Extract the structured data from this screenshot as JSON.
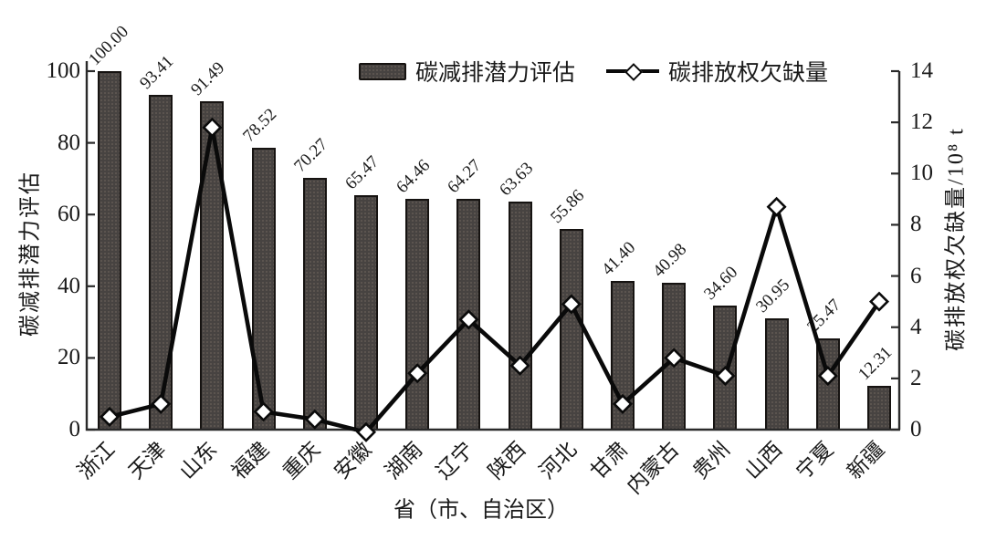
{
  "chart_data": {
    "type": "combo-bar-line",
    "categories": [
      "浙江",
      "天津",
      "山东",
      "福建",
      "重庆",
      "安徽",
      "湖南",
      "辽宁",
      "陕西",
      "河北",
      "甘肃",
      "内蒙古",
      "贵州",
      "山西",
      "宁夏",
      "新疆"
    ],
    "series": [
      {
        "name": "碳减排潜力评估",
        "type": "bar",
        "axis": "left",
        "values": [
          100.0,
          93.41,
          91.49,
          78.52,
          70.27,
          65.47,
          64.46,
          64.27,
          63.63,
          55.86,
          41.4,
          40.98,
          34.6,
          30.95,
          25.47,
          12.31
        ],
        "value_labels": [
          "100.00",
          "93.41",
          "91.49",
          "78.52",
          "70.27",
          "65.47",
          "64.46",
          "64.27",
          "63.63",
          "55.86",
          "41.40",
          "40.98",
          "34.60",
          "30.95",
          "25.47",
          "12.31"
        ]
      },
      {
        "name": "碳排放权欠缺量",
        "type": "line",
        "axis": "right",
        "values": [
          0.5,
          1.0,
          11.8,
          0.7,
          0.4,
          -0.1,
          2.2,
          4.3,
          2.5,
          4.9,
          1.0,
          2.8,
          2.1,
          8.7,
          2.1,
          5.0
        ]
      }
    ],
    "left_axis": {
      "label": "碳减排潜力评估",
      "ticks": [
        0,
        20,
        40,
        60,
        80,
        100
      ],
      "range": [
        0,
        100
      ]
    },
    "right_axis": {
      "label": "碳排放权欠缺量/10⁸ t",
      "ticks": [
        0,
        2,
        4,
        6,
        8,
        10,
        12,
        14
      ],
      "range": [
        0,
        14
      ]
    },
    "xlabel": "省（市、自治区）",
    "legend": [
      "碳减排潜力评估",
      "碳排放权欠缺量"
    ],
    "grid": false,
    "legend_position": "top",
    "colors": {
      "bar_fill": "#474341",
      "bar_dot": "#5d5650",
      "bar_border": "#161311",
      "line": "#0a0a0a",
      "marker_fill": "#ffffff",
      "text": "#1a1a1a"
    }
  }
}
